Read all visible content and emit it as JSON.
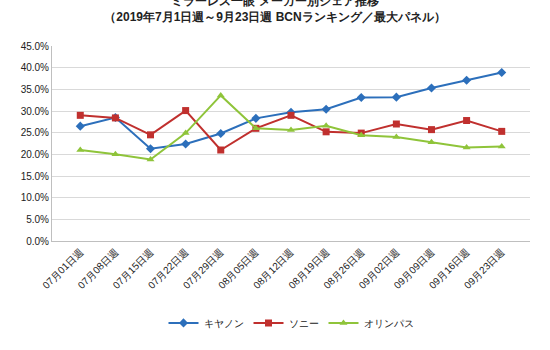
{
  "chart_data": {
    "type": "line",
    "title": "ミラーレス一眼 メーカー別シェア推移",
    "subtitle": "（2019年7月1日週～9月23日週 BCNランキング／最大パネル）",
    "categories": [
      "07月01日週",
      "07月08日週",
      "07月15日週",
      "07月22日週",
      "07月29日週",
      "08月05日週",
      "08月12日週",
      "08月19日週",
      "08月26日週",
      "09月02日週",
      "09月09日週",
      "09月16日週",
      "09月23日週"
    ],
    "series": [
      {
        "name": "キヤノン",
        "color": "#2c6fbb",
        "marker": "diamond",
        "values": [
          26.5,
          28.5,
          21.3,
          22.4,
          24.8,
          28.3,
          29.7,
          30.4,
          33.1,
          33.2,
          35.3,
          37.1,
          38.9
        ]
      },
      {
        "name": "ソニー",
        "color": "#c0302e",
        "marker": "square",
        "values": [
          29.0,
          28.4,
          24.5,
          30.1,
          21.0,
          26.0,
          29.0,
          25.2,
          24.9,
          27.0,
          25.7,
          27.8,
          25.3
        ]
      },
      {
        "name": "オリンパス",
        "color": "#8fc43a",
        "marker": "triangle",
        "values": [
          21.0,
          20.0,
          18.8,
          24.9,
          33.6,
          26.0,
          25.6,
          26.6,
          24.4,
          24.0,
          22.8,
          21.6,
          21.8
        ]
      }
    ],
    "ylim": [
      0,
      45
    ],
    "yticks": [
      {
        "value": 0,
        "label": "0.0%"
      },
      {
        "value": 5,
        "label": "5.0%"
      },
      {
        "value": 10,
        "label": "10.0%"
      },
      {
        "value": 15,
        "label": "15.0%"
      },
      {
        "value": 20,
        "label": "20.0%"
      },
      {
        "value": 25,
        "label": "25.0%"
      },
      {
        "value": 30,
        "label": "30.0%"
      },
      {
        "value": 35,
        "label": "35.0%"
      },
      {
        "value": 40,
        "label": "40.0%"
      },
      {
        "value": 45,
        "label": "45.0%"
      }
    ],
    "grid": true,
    "legend": "bottom"
  }
}
